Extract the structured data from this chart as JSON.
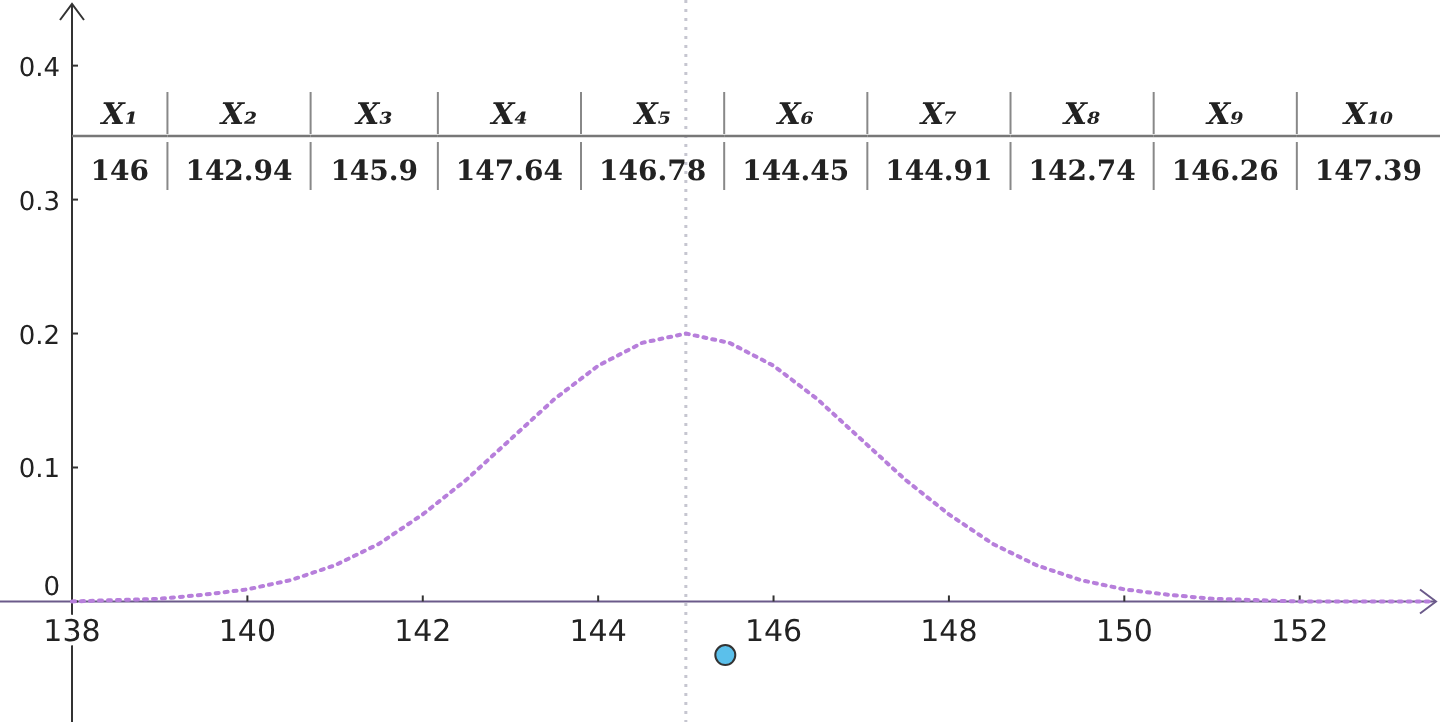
{
  "chart_data": {
    "type": "line",
    "x": [
      138,
      138.5,
      139,
      139.5,
      140,
      140.5,
      141,
      141.5,
      142,
      142.5,
      143,
      143.5,
      144,
      144.5,
      145,
      145.5,
      146,
      146.5,
      147,
      147.5,
      148,
      148.5,
      149,
      149.5,
      150,
      150.5,
      151,
      151.5,
      152,
      152.5,
      153,
      153.5
    ],
    "series": [
      {
        "color": "#b77fdb",
        "line_style": "dotted",
        "values": [
          0,
          0.001,
          0.002,
          0.005,
          0.009,
          0.016,
          0.027,
          0.043,
          0.065,
          0.091,
          0.121,
          0.151,
          0.176,
          0.193,
          0.2,
          0.193,
          0.176,
          0.151,
          0.121,
          0.091,
          0.065,
          0.043,
          0.027,
          0.016,
          0.009,
          0.005,
          0.002,
          0.001,
          0,
          0,
          0,
          0
        ]
      },
      {
        "type": "scatter",
        "x": [
          145.45
        ],
        "values": [
          -0.04
        ],
        "color": "#5bc0eb",
        "marker": "circle"
      }
    ],
    "xlim": [
      138,
      153.6
    ],
    "ylim": [
      -0.09,
      0.449
    ],
    "xticks": [
      138,
      140,
      142,
      144,
      146,
      148,
      150,
      152
    ],
    "yticks": [
      0,
      0.1,
      0.2,
      0.3,
      0.4
    ],
    "ref_lines": [
      {
        "axis": "x",
        "value": 145,
        "color": "#c6c6d0",
        "line_style": "dotted"
      }
    ],
    "annotations": [
      "X₁",
      "X₂",
      "X₃",
      "X₄",
      "X₅",
      "X₆",
      "X₇",
      "X₈",
      "X₉",
      "X₁₀",
      "146",
      "142.94",
      "145.9",
      "147.64",
      "146.78",
      "144.45",
      "144.91",
      "142.74",
      "146.26",
      "147.39"
    ],
    "grid": false
  }
}
